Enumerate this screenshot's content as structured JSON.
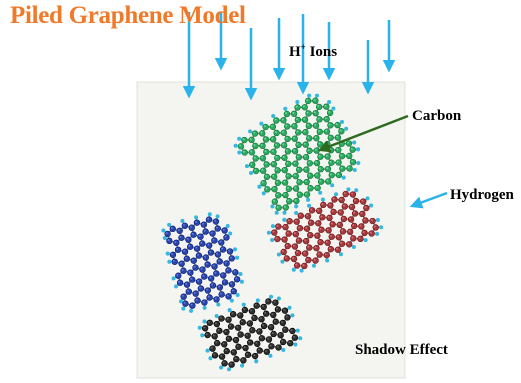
{
  "title": "Piled Graphene Model",
  "labels": {
    "ions_prefix": "H",
    "ions_sup": "+",
    "ions_suffix": " Ions",
    "carbon": "Carbon",
    "hydrogen": "Hydrogen",
    "shadow": "Shadow Effect"
  },
  "colors": {
    "title": "#F07A2A",
    "ion_arrow": "#29B3EA",
    "carbon_arrow": "#2E6B1E",
    "hydrogen_atom": "#35B7DF",
    "green_sheet": "#2FA862",
    "red_sheet": "#A33A3E",
    "blue_sheet": "#2B46AA",
    "black_sheet": "#2E2E2E",
    "panel_bg": "#F4F4F0"
  }
}
